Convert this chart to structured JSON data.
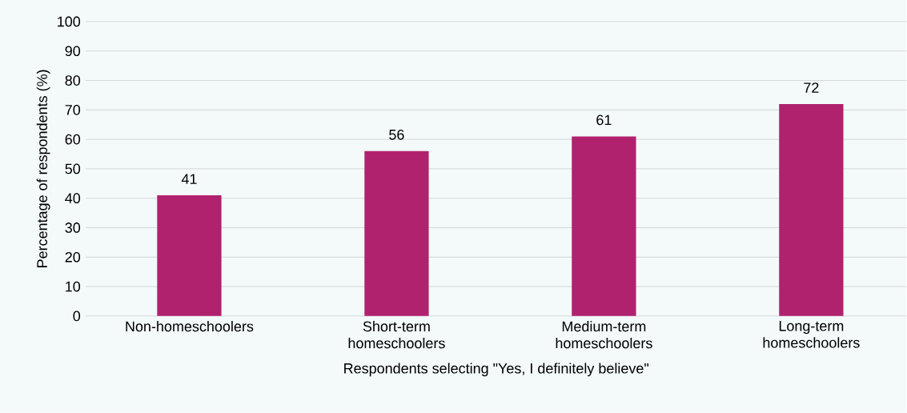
{
  "chart_data": {
    "type": "bar",
    "xlabel": "Respondents selecting \"Yes, I definitely believe\"",
    "ylabel": "Percentage of respondents (%)",
    "categories": [
      "Non-homeschoolers",
      "Short-term homeschoolers",
      "Medium-term homeschoolers",
      "Long-term homeschoolers"
    ],
    "values": [
      41,
      56,
      61,
      72
    ],
    "color": "#b0226e",
    "ylim": [
      0,
      100
    ],
    "yticks": [
      0,
      10,
      20,
      30,
      40,
      50,
      60,
      70,
      80,
      90,
      100
    ],
    "grid": "y",
    "data_labels": true
  }
}
